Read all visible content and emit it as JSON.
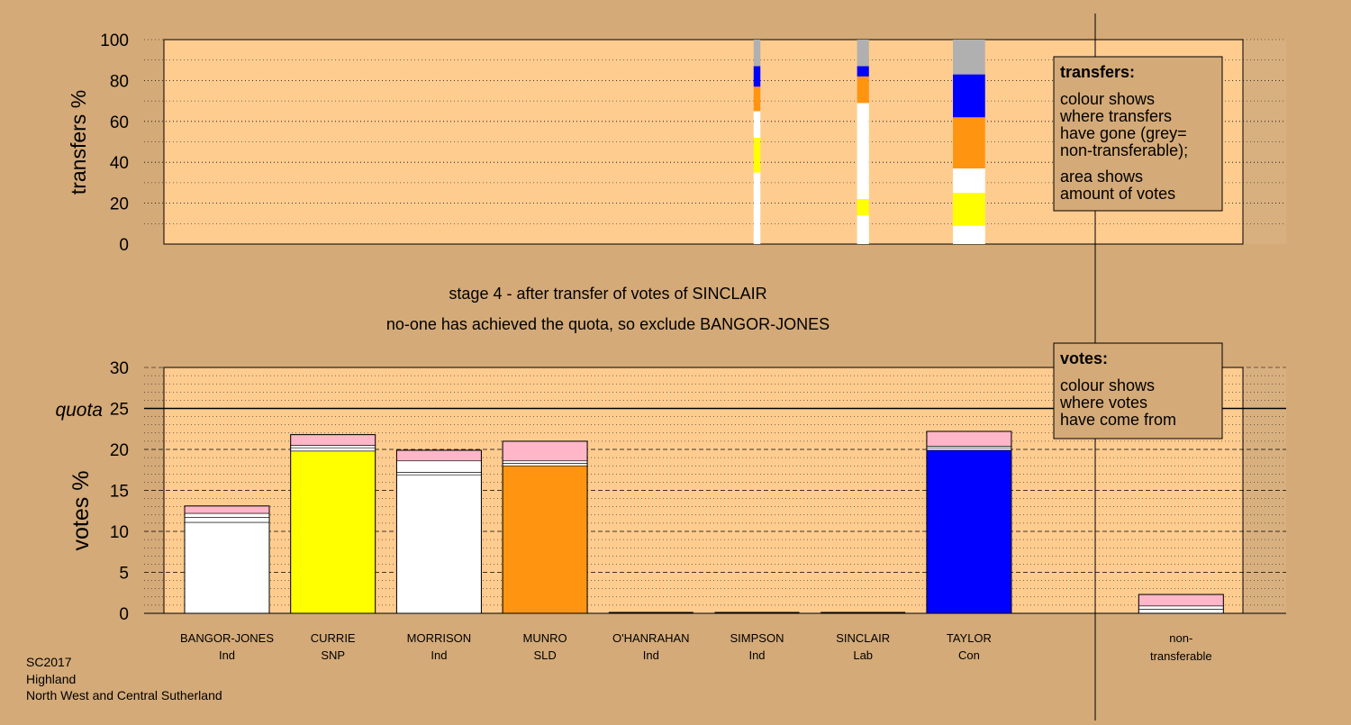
{
  "colors": {
    "background": "#d4aa78",
    "panel": "#ffcc90",
    "white": "#ffffff",
    "yellow": "#ffff00",
    "orange": "#ff9410",
    "blue": "#0000ff",
    "grey": "#b0b0b0",
    "pink": "#ffb6c8"
  },
  "stage_text": {
    "line1": "stage 4 - after transfer of votes of SINCLAIR",
    "line2": "no-one has achieved the quota, so exclude BANGOR-JONES"
  },
  "footer": {
    "line1": "SC2017",
    "line2": "Highland",
    "line3": "North West and Central Sutherland"
  },
  "transfers_legend": {
    "title": "transfers:",
    "lines": [
      "colour shows",
      "where transfers",
      "have gone (grey=",
      "non-transferable);"
    ],
    "lines2": [
      "area shows",
      "amount of votes"
    ]
  },
  "votes_legend": {
    "title": "votes:",
    "lines": [
      "colour shows",
      "where votes",
      "have come from"
    ]
  },
  "chart_data": [
    {
      "type": "bar",
      "name": "transfers",
      "ylabel": "transfers %",
      "ylim": [
        0,
        100
      ],
      "yticks": [
        "0",
        "20",
        "40",
        "60",
        "80",
        "100"
      ],
      "bars": [
        {
          "slot": 5,
          "width_fraction": 0.08,
          "segments": [
            {
              "color": "white",
              "from": 0,
              "to": 35
            },
            {
              "color": "yellow",
              "from": 35,
              "to": 52
            },
            {
              "color": "white",
              "from": 52,
              "to": 65
            },
            {
              "color": "orange",
              "from": 65,
              "to": 77
            },
            {
              "color": "blue",
              "from": 77,
              "to": 87
            },
            {
              "color": "grey",
              "from": 87,
              "to": 100
            }
          ]
        },
        {
          "slot": 6,
          "width_fraction": 0.14,
          "segments": [
            {
              "color": "white",
              "from": 0,
              "to": 14
            },
            {
              "color": "yellow",
              "from": 14,
              "to": 22
            },
            {
              "color": "white",
              "from": 22,
              "to": 69
            },
            {
              "color": "orange",
              "from": 69,
              "to": 82
            },
            {
              "color": "blue",
              "from": 82,
              "to": 87
            },
            {
              "color": "grey",
              "from": 87,
              "to": 100
            }
          ]
        },
        {
          "slot": 7,
          "width_fraction": 0.38,
          "segments": [
            {
              "color": "white",
              "from": 0,
              "to": 9
            },
            {
              "color": "yellow",
              "from": 9,
              "to": 25
            },
            {
              "color": "white",
              "from": 25,
              "to": 37
            },
            {
              "color": "orange",
              "from": 37,
              "to": 62
            },
            {
              "color": "blue",
              "from": 62,
              "to": 83
            },
            {
              "color": "grey",
              "from": 83,
              "to": 100
            }
          ]
        }
      ]
    },
    {
      "type": "bar",
      "name": "votes",
      "ylabel": "votes %",
      "ylim": [
        0,
        30
      ],
      "yticks": [
        "0",
        "5",
        "10",
        "15",
        "20",
        "25",
        "30"
      ],
      "quota": 25,
      "quota_label": "quota",
      "categories": [
        {
          "name": "BANGOR-JONES",
          "party": "Ind"
        },
        {
          "name": "CURRIE",
          "party": "SNP"
        },
        {
          "name": "MORRISON",
          "party": "Ind"
        },
        {
          "name": "MUNRO",
          "party": "SLD"
        },
        {
          "name": "O'HANRAHAN",
          "party": "Ind"
        },
        {
          "name": "SIMPSON",
          "party": "Ind"
        },
        {
          "name": "SINCLAIR",
          "party": "Lab"
        },
        {
          "name": "TAYLOR",
          "party": "Con"
        }
      ],
      "nontransferable_label": [
        "non-",
        "transferable"
      ],
      "bars": [
        {
          "slot": 0,
          "segments": [
            {
              "color": "white",
              "from": 0,
              "to": 11.1
            },
            {
              "color": "white",
              "from": 11.1,
              "to": 11.7
            },
            {
              "color": "white",
              "from": 11.7,
              "to": 12.2
            },
            {
              "color": "pink",
              "from": 12.2,
              "to": 13.1
            }
          ]
        },
        {
          "slot": 1,
          "segments": [
            {
              "color": "yellow",
              "from": 0,
              "to": 19.8
            },
            {
              "color": "white",
              "from": 19.8,
              "to": 20.2
            },
            {
              "color": "white",
              "from": 20.2,
              "to": 20.5
            },
            {
              "color": "pink",
              "from": 20.5,
              "to": 21.8
            }
          ]
        },
        {
          "slot": 2,
          "segments": [
            {
              "color": "white",
              "from": 0,
              "to": 16.9
            },
            {
              "color": "white",
              "from": 16.9,
              "to": 17.2
            },
            {
              "color": "white",
              "from": 17.2,
              "to": 18.6
            },
            {
              "color": "pink",
              "from": 18.6,
              "to": 19.9
            }
          ]
        },
        {
          "slot": 3,
          "segments": [
            {
              "color": "orange",
              "from": 0,
              "to": 18.0
            },
            {
              "color": "white",
              "from": 18.0,
              "to": 18.3
            },
            {
              "color": "white",
              "from": 18.3,
              "to": 18.6
            },
            {
              "color": "pink",
              "from": 18.6,
              "to": 21.0
            }
          ]
        },
        {
          "slot": 4,
          "segments": []
        },
        {
          "slot": 5,
          "segments": []
        },
        {
          "slot": 6,
          "segments": []
        },
        {
          "slot": 7,
          "segments": [
            {
              "color": "blue",
              "from": 0,
              "to": 19.9
            },
            {
              "color": "white",
              "from": 19.9,
              "to": 20.2
            },
            {
              "color": "white",
              "from": 20.2,
              "to": 20.4
            },
            {
              "color": "pink",
              "from": 20.4,
              "to": 22.2
            }
          ]
        },
        {
          "slot": 9,
          "segments": [
            {
              "color": "white",
              "from": 0,
              "to": 0.5
            },
            {
              "color": "white",
              "from": 0.5,
              "to": 0.9
            },
            {
              "color": "pink",
              "from": 0.9,
              "to": 2.3
            }
          ]
        }
      ]
    }
  ]
}
